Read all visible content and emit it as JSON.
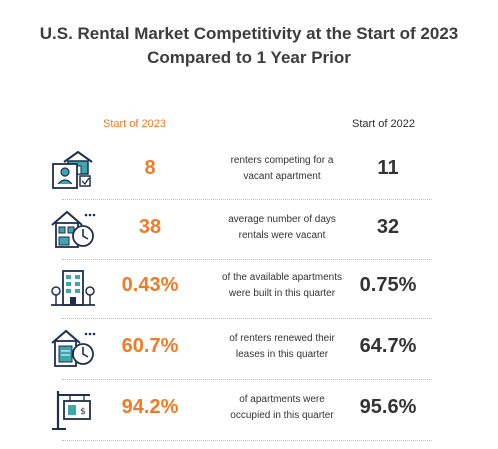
{
  "title_line1": "U.S. Rental Market Competitivity at the Start of 2023",
  "title_line2": "Compared to 1 Year Prior",
  "chart_data": {
    "type": "table",
    "columns": [
      "Start of 2023",
      "",
      "Start of 2022"
    ],
    "rows": [
      {
        "icon": "renters-house-icon",
        "v2023": "8",
        "label_line1": "renters competing for a",
        "label_line2": "vacant apartment",
        "v2022": "11"
      },
      {
        "icon": "house-clock-icon",
        "v2023": "38",
        "label_line1": "average number of days",
        "label_line2": "rentals were vacant",
        "v2022": "32"
      },
      {
        "icon": "apartment-building-icon",
        "v2023": "0.43%",
        "label_line1": "of the available apartments",
        "label_line2": "were built in this quarter",
        "v2022": "0.75%"
      },
      {
        "icon": "lease-clock-icon",
        "v2023": "60.7%",
        "label_line1": "of renters renewed their",
        "label_line2": "leases in this quarter",
        "v2022": "64.7%"
      },
      {
        "icon": "for-rent-sign-icon",
        "v2023": "94.2%",
        "label_line1": "of apartments were",
        "label_line2": "occupied in this quarter",
        "v2022": "95.6%"
      }
    ]
  },
  "colors": {
    "accent": "#ef7b27",
    "text": "#333333",
    "icon_navy": "#1f2f4d",
    "icon_teal": "#3fa6ad"
  }
}
